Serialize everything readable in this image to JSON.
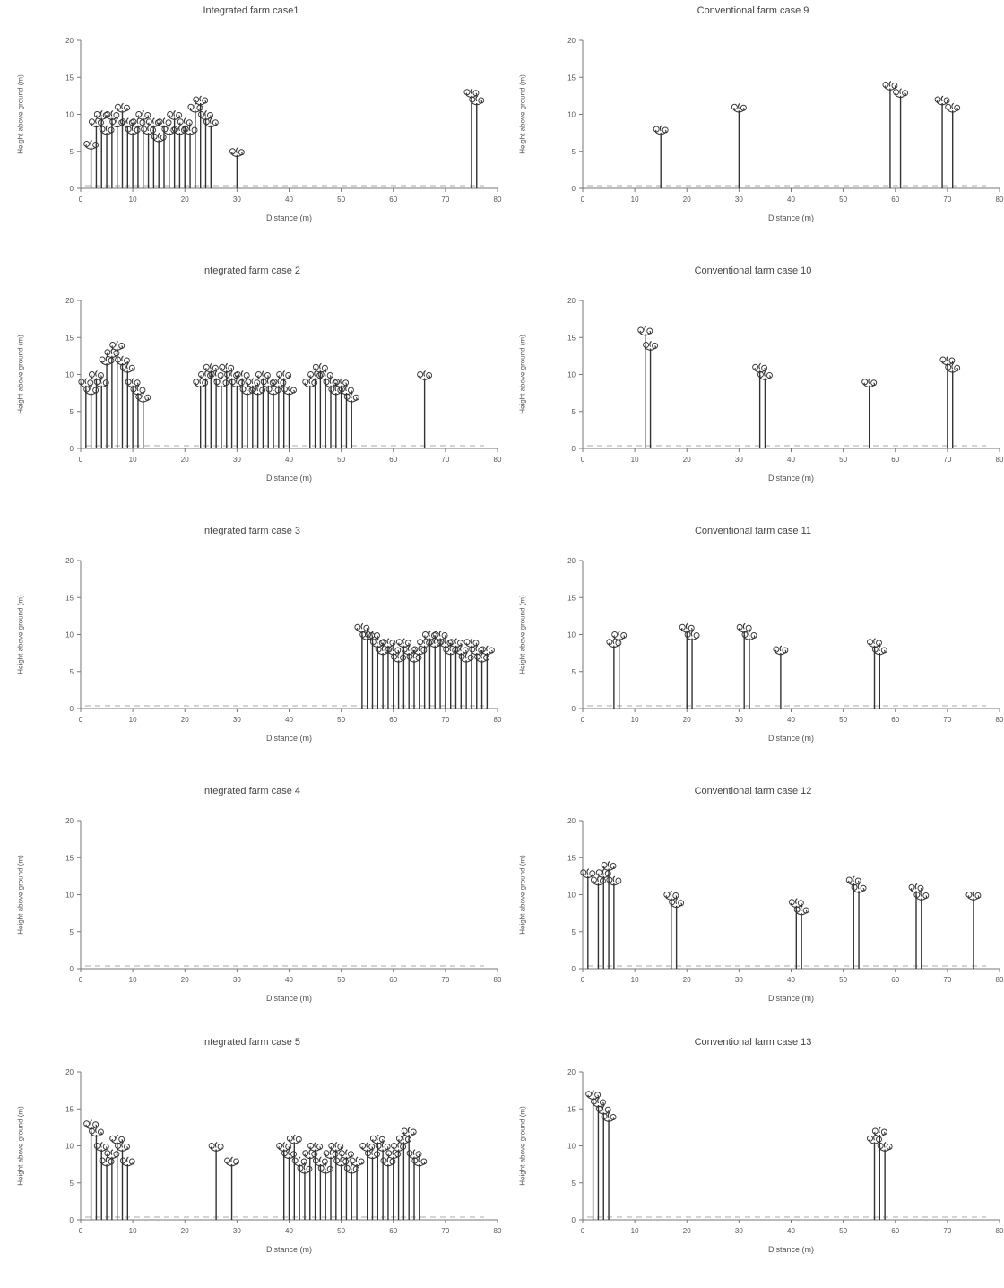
{
  "figure": {
    "y_axis_label": "Height above ground (m)",
    "x_axis_label": "Distance (m)"
  },
  "panels": [
    {
      "title": "Integrated farm case1",
      "yticks": [
        "0",
        "5",
        "10",
        "15",
        "20"
      ],
      "xticks": [
        "0",
        "10",
        "20",
        "30",
        "40",
        "50",
        "60",
        "70",
        "80"
      ],
      "ymax": 20,
      "xmax": 80,
      "trees": [
        [
          2,
          6
        ],
        [
          3,
          9
        ],
        [
          4,
          10
        ],
        [
          5,
          8
        ],
        [
          6,
          10
        ],
        [
          7,
          9
        ],
        [
          8,
          11
        ],
        [
          9,
          9
        ],
        [
          10,
          8
        ],
        [
          11,
          9
        ],
        [
          12,
          10
        ],
        [
          13,
          8
        ],
        [
          14,
          9
        ],
        [
          15,
          7
        ],
        [
          16,
          9
        ],
        [
          17,
          8
        ],
        [
          18,
          10
        ],
        [
          19,
          8
        ],
        [
          20,
          9
        ],
        [
          21,
          8
        ],
        [
          22,
          11
        ],
        [
          23,
          12
        ],
        [
          24,
          10
        ],
        [
          25,
          9
        ],
        [
          30,
          5
        ],
        [
          75,
          13
        ],
        [
          76,
          12
        ]
      ]
    },
    {
      "title": "Conventional farm case 9",
      "yticks": [
        "0",
        "5",
        "10",
        "15",
        "20"
      ],
      "xticks": [
        "0",
        "10",
        "20",
        "30",
        "40",
        "50",
        "60",
        "70",
        "80"
      ],
      "ymax": 20,
      "xmax": 80,
      "trees": [
        [
          15,
          8
        ],
        [
          30,
          11
        ],
        [
          59,
          14
        ],
        [
          61,
          13
        ],
        [
          69,
          12
        ],
        [
          71,
          11
        ]
      ]
    },
    {
      "title": "Integrated farm case 2",
      "yticks": [
        "0",
        "5",
        "10",
        "15",
        "20"
      ],
      "xticks": [
        "0",
        "10",
        "20",
        "30",
        "40",
        "50",
        "60",
        "70",
        "80"
      ],
      "ymax": 20,
      "xmax": 80,
      "trees": [
        [
          1,
          9
        ],
        [
          2,
          8
        ],
        [
          3,
          10
        ],
        [
          4,
          9
        ],
        [
          5,
          12
        ],
        [
          6,
          13
        ],
        [
          7,
          14
        ],
        [
          8,
          12
        ],
        [
          9,
          11
        ],
        [
          10,
          9
        ],
        [
          11,
          8
        ],
        [
          12,
          7
        ],
        [
          23,
          9
        ],
        [
          24,
          10
        ],
        [
          25,
          11
        ],
        [
          26,
          10
        ],
        [
          27,
          9
        ],
        [
          28,
          11
        ],
        [
          29,
          10
        ],
        [
          30,
          9
        ],
        [
          31,
          10
        ],
        [
          32,
          8
        ],
        [
          33,
          9
        ],
        [
          34,
          8
        ],
        [
          35,
          10
        ],
        [
          36,
          9
        ],
        [
          37,
          8
        ],
        [
          38,
          9
        ],
        [
          39,
          10
        ],
        [
          40,
          8
        ],
        [
          44,
          9
        ],
        [
          45,
          10
        ],
        [
          46,
          11
        ],
        [
          47,
          10
        ],
        [
          48,
          9
        ],
        [
          49,
          8
        ],
        [
          50,
          9
        ],
        [
          51,
          8
        ],
        [
          52,
          7
        ],
        [
          66,
          10
        ]
      ]
    },
    {
      "title": "Conventional farm case 10",
      "yticks": [
        "0",
        "5",
        "10",
        "15",
        "20"
      ],
      "xticks": [
        "0",
        "10",
        "20",
        "30",
        "40",
        "50",
        "60",
        "70",
        "80"
      ],
      "ymax": 20,
      "xmax": 80,
      "trees": [
        [
          12,
          16
        ],
        [
          13,
          14
        ],
        [
          34,
          11
        ],
        [
          35,
          10
        ],
        [
          55,
          9
        ],
        [
          70,
          12
        ],
        [
          71,
          11
        ]
      ]
    },
    {
      "title": "Integrated farm case 3",
      "yticks": [
        "0",
        "5",
        "10",
        "15",
        "20"
      ],
      "xticks": [
        "0",
        "10",
        "20",
        "30",
        "40",
        "50",
        "60",
        "70",
        "80"
      ],
      "ymax": 20,
      "xmax": 80,
      "trees": [
        [
          54,
          11
        ],
        [
          55,
          10
        ],
        [
          56,
          10
        ],
        [
          57,
          9
        ],
        [
          58,
          8
        ],
        [
          59,
          9
        ],
        [
          60,
          8
        ],
        [
          61,
          7
        ],
        [
          62,
          9
        ],
        [
          63,
          8
        ],
        [
          64,
          7
        ],
        [
          65,
          8
        ],
        [
          66,
          9
        ],
        [
          67,
          10
        ],
        [
          68,
          9
        ],
        [
          69,
          10
        ],
        [
          70,
          9
        ],
        [
          71,
          8
        ],
        [
          72,
          9
        ],
        [
          73,
          8
        ],
        [
          74,
          7
        ],
        [
          75,
          9
        ],
        [
          76,
          8
        ],
        [
          77,
          7
        ],
        [
          78,
          8
        ]
      ]
    },
    {
      "title": "Conventional farm case 11",
      "yticks": [
        "0",
        "5",
        "10",
        "15",
        "20"
      ],
      "xticks": [
        "0",
        "10",
        "20",
        "30",
        "40",
        "50",
        "60",
        "70",
        "80"
      ],
      "ymax": 20,
      "xmax": 80,
      "trees": [
        [
          6,
          9
        ],
        [
          7,
          10
        ],
        [
          20,
          11
        ],
        [
          21,
          10
        ],
        [
          31,
          11
        ],
        [
          32,
          10
        ],
        [
          38,
          8
        ],
        [
          56,
          9
        ],
        [
          57,
          8
        ]
      ]
    },
    {
      "title": "Integrated farm case 4",
      "yticks": [
        "0",
        "5",
        "10",
        "15",
        "20"
      ],
      "xticks": [
        "0",
        "10",
        "20",
        "30",
        "40",
        "50",
        "60",
        "70",
        "80"
      ],
      "ymax": 20,
      "xmax": 80,
      "trees": []
    },
    {
      "title": "Conventional farm case 12",
      "yticks": [
        "0",
        "5",
        "10",
        "15",
        "20"
      ],
      "xticks": [
        "0",
        "10",
        "20",
        "30",
        "40",
        "50",
        "60",
        "70",
        "80"
      ],
      "ymax": 20,
      "xmax": 80,
      "trees": [
        [
          1,
          13
        ],
        [
          3,
          12
        ],
        [
          4,
          13
        ],
        [
          5,
          14
        ],
        [
          6,
          12
        ],
        [
          17,
          10
        ],
        [
          18,
          9
        ],
        [
          41,
          9
        ],
        [
          42,
          8
        ],
        [
          52,
          12
        ],
        [
          53,
          11
        ],
        [
          64,
          11
        ],
        [
          65,
          10
        ],
        [
          75,
          10
        ]
      ]
    },
    {
      "title": "Integrated farm case 5",
      "yticks": [
        "0",
        "5",
        "10",
        "15",
        "20"
      ],
      "xticks": [
        "0",
        "10",
        "20",
        "30",
        "40",
        "50",
        "60",
        "70",
        "80"
      ],
      "ymax": 20,
      "xmax": 80,
      "trees": [
        [
          2,
          13
        ],
        [
          3,
          12
        ],
        [
          4,
          10
        ],
        [
          5,
          8
        ],
        [
          6,
          9
        ],
        [
          7,
          11
        ],
        [
          8,
          10
        ],
        [
          9,
          8
        ],
        [
          26,
          10
        ],
        [
          29,
          8
        ],
        [
          39,
          10
        ],
        [
          40,
          9
        ],
        [
          41,
          11
        ],
        [
          42,
          8
        ],
        [
          43,
          7
        ],
        [
          44,
          9
        ],
        [
          45,
          10
        ],
        [
          46,
          8
        ],
        [
          47,
          7
        ],
        [
          48,
          9
        ],
        [
          49,
          10
        ],
        [
          50,
          8
        ],
        [
          51,
          9
        ],
        [
          52,
          7
        ],
        [
          53,
          8
        ],
        [
          55,
          10
        ],
        [
          56,
          9
        ],
        [
          57,
          11
        ],
        [
          58,
          10
        ],
        [
          59,
          8
        ],
        [
          60,
          9
        ],
        [
          61,
          10
        ],
        [
          62,
          11
        ],
        [
          63,
          12
        ],
        [
          64,
          9
        ],
        [
          65,
          8
        ]
      ]
    },
    {
      "title": "Conventional farm case 13",
      "yticks": [
        "0",
        "5",
        "10",
        "15",
        "20"
      ],
      "xticks": [
        "0",
        "10",
        "20",
        "30",
        "40",
        "50",
        "60",
        "70",
        "80"
      ],
      "ymax": 20,
      "xmax": 80,
      "trees": [
        [
          2,
          17
        ],
        [
          3,
          16
        ],
        [
          4,
          15
        ],
        [
          5,
          14
        ],
        [
          56,
          11
        ],
        [
          57,
          12
        ],
        [
          58,
          10
        ]
      ]
    }
  ]
}
